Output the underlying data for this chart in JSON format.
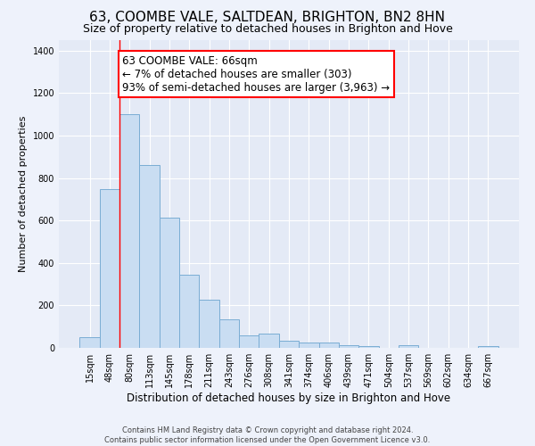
{
  "title": "63, COOMBE VALE, SALTDEAN, BRIGHTON, BN2 8HN",
  "subtitle": "Size of property relative to detached houses in Brighton and Hove",
  "xlabel": "Distribution of detached houses by size in Brighton and Hove",
  "ylabel": "Number of detached properties",
  "footer_line1": "Contains HM Land Registry data © Crown copyright and database right 2024.",
  "footer_line2": "Contains public sector information licensed under the Open Government Licence v3.0.",
  "bar_labels": [
    "15sqm",
    "48sqm",
    "80sqm",
    "113sqm",
    "145sqm",
    "178sqm",
    "211sqm",
    "243sqm",
    "276sqm",
    "308sqm",
    "341sqm",
    "374sqm",
    "406sqm",
    "439sqm",
    "471sqm",
    "504sqm",
    "537sqm",
    "569sqm",
    "602sqm",
    "634sqm",
    "667sqm"
  ],
  "bar_values": [
    50,
    750,
    1100,
    860,
    615,
    345,
    225,
    135,
    60,
    68,
    32,
    25,
    25,
    14,
    10,
    0,
    12,
    0,
    0,
    0,
    10
  ],
  "bar_color": "#c9ddf2",
  "bar_edge_color": "#7aadd4",
  "property_line_x": 1.5,
  "property_line_color": "red",
  "annotation_text": "63 COOMBE VALE: 66sqm\n← 7% of detached houses are smaller (303)\n93% of semi-detached houses are larger (3,963) →",
  "annotation_box_color": "white",
  "annotation_box_edge_color": "red",
  "ylim": [
    0,
    1450
  ],
  "yticks": [
    0,
    200,
    400,
    600,
    800,
    1000,
    1200,
    1400
  ],
  "background_color": "#eef2fb",
  "plot_background": "#e4eaf6",
  "grid_color": "white",
  "title_fontsize": 11,
  "subtitle_fontsize": 9,
  "annotation_fontsize": 8.5,
  "footer_fontsize": 6,
  "ylabel_fontsize": 8,
  "xlabel_fontsize": 8.5,
  "tick_fontsize": 7
}
